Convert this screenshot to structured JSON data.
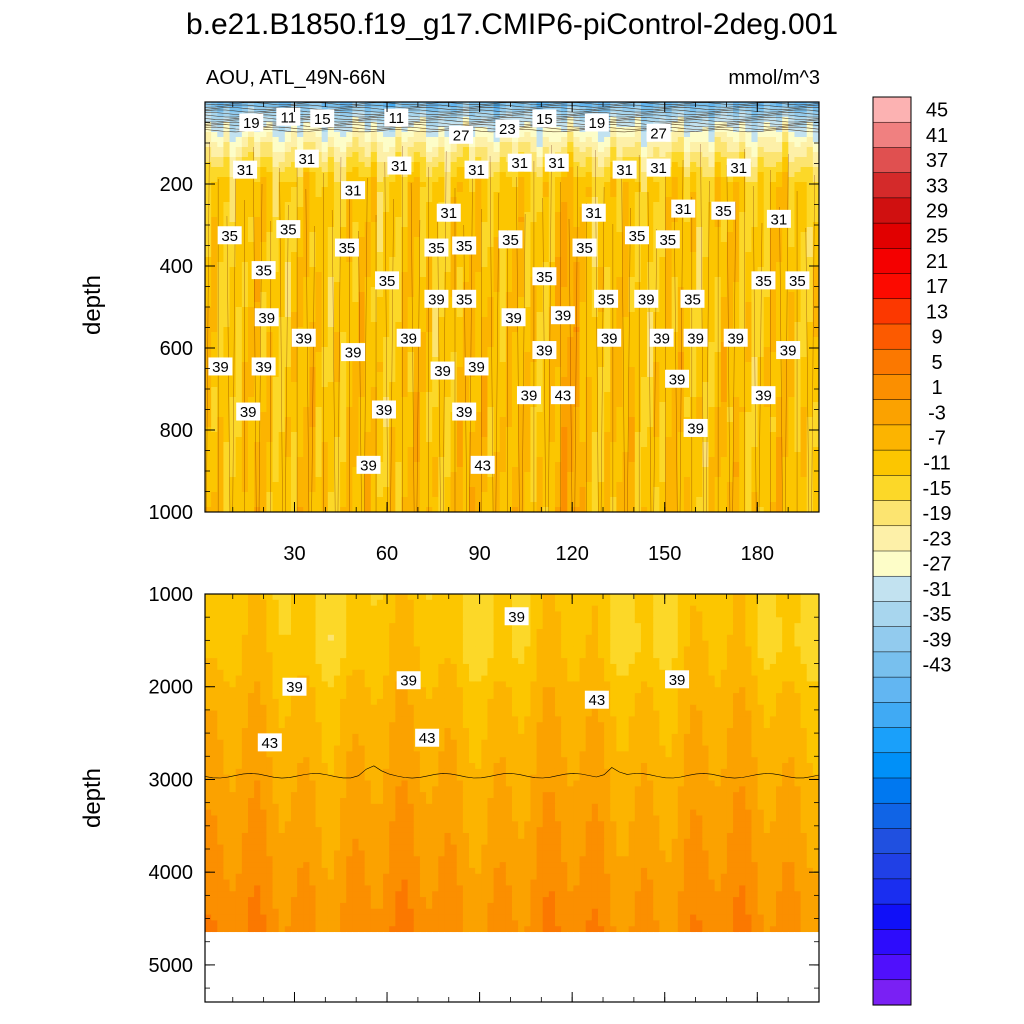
{
  "chart_data": {
    "type": "contour",
    "title": "b.e21.B1850.f19_g17.CMIP6-piControl-2deg.001",
    "left_subtitle": "AOU, ATL_49N-66N",
    "right_subtitle": "mmol/m^3",
    "ylabel": "depth",
    "upper_panel": {
      "ylim": [
        0,
        1000
      ],
      "xlim": [
        1,
        200
      ],
      "y_ticks": [
        "200",
        "400",
        "600",
        "800",
        "1000"
      ],
      "y_tick_values": [
        200,
        400,
        600,
        800,
        1000
      ],
      "x_ticks": [
        "30",
        "60",
        "90",
        "120",
        "150",
        "180"
      ],
      "x_tick_values": [
        30,
        60,
        90,
        120,
        150,
        180
      ],
      "contour_labels": [
        {
          "t": "19",
          "x": 16,
          "y": 50
        },
        {
          "t": "11",
          "x": 28,
          "y": 36
        },
        {
          "t": "15",
          "x": 39,
          "y": 40
        },
        {
          "t": "11",
          "x": 63,
          "y": 38
        },
        {
          "t": "27",
          "x": 84,
          "y": 80
        },
        {
          "t": "23",
          "x": 99,
          "y": 65
        },
        {
          "t": "15",
          "x": 111,
          "y": 40
        },
        {
          "t": "19",
          "x": 128,
          "y": 50
        },
        {
          "t": "27",
          "x": 148,
          "y": 75
        },
        {
          "t": "31",
          "x": 14,
          "y": 165
        },
        {
          "t": "31",
          "x": 34,
          "y": 138
        },
        {
          "t": "31",
          "x": 64,
          "y": 155
        },
        {
          "t": "31",
          "x": 49,
          "y": 215
        },
        {
          "t": "31",
          "x": 89,
          "y": 165
        },
        {
          "t": "31",
          "x": 103,
          "y": 148
        },
        {
          "t": "31",
          "x": 115,
          "y": 148
        },
        {
          "t": "31",
          "x": 137,
          "y": 165
        },
        {
          "t": "31",
          "x": 148,
          "y": 160
        },
        {
          "t": "31",
          "x": 174,
          "y": 160
        },
        {
          "t": "31",
          "x": 80,
          "y": 270
        },
        {
          "t": "31",
          "x": 127,
          "y": 270
        },
        {
          "t": "31",
          "x": 156,
          "y": 260
        },
        {
          "t": "35",
          "x": 169,
          "y": 265
        },
        {
          "t": "31",
          "x": 187,
          "y": 285
        },
        {
          "t": "35",
          "x": 9,
          "y": 325
        },
        {
          "t": "35",
          "x": 28,
          "y": 310
        },
        {
          "t": "35",
          "x": 47,
          "y": 355
        },
        {
          "t": "35",
          "x": 76,
          "y": 355
        },
        {
          "t": "35",
          "x": 85,
          "y": 350
        },
        {
          "t": "35",
          "x": 100,
          "y": 335
        },
        {
          "t": "35",
          "x": 141,
          "y": 325
        },
        {
          "t": "35",
          "x": 151,
          "y": 335
        },
        {
          "t": "35",
          "x": 20,
          "y": 410
        },
        {
          "t": "35",
          "x": 60,
          "y": 435
        },
        {
          "t": "35",
          "x": 111,
          "y": 425
        },
        {
          "t": "35",
          "x": 124,
          "y": 355
        },
        {
          "t": "39",
          "x": 76,
          "y": 480
        },
        {
          "t": "35",
          "x": 85,
          "y": 480
        },
        {
          "t": "35",
          "x": 131,
          "y": 480
        },
        {
          "t": "39",
          "x": 144,
          "y": 480
        },
        {
          "t": "35",
          "x": 159,
          "y": 480
        },
        {
          "t": "35",
          "x": 182,
          "y": 435
        },
        {
          "t": "35",
          "x": 193,
          "y": 435
        },
        {
          "t": "39",
          "x": 21,
          "y": 525
        },
        {
          "t": "39",
          "x": 101,
          "y": 525
        },
        {
          "t": "39",
          "x": 117,
          "y": 520
        },
        {
          "t": "39",
          "x": 33,
          "y": 575
        },
        {
          "t": "39",
          "x": 49,
          "y": 610
        },
        {
          "t": "39",
          "x": 67,
          "y": 575
        },
        {
          "t": "39",
          "x": 111,
          "y": 605
        },
        {
          "t": "39",
          "x": 132,
          "y": 575
        },
        {
          "t": "39",
          "x": 149,
          "y": 575
        },
        {
          "t": "39",
          "x": 160,
          "y": 575
        },
        {
          "t": "39",
          "x": 173,
          "y": 575
        },
        {
          "t": "39",
          "x": 190,
          "y": 605
        },
        {
          "t": "39",
          "x": 6,
          "y": 645
        },
        {
          "t": "39",
          "x": 20,
          "y": 645
        },
        {
          "t": "39",
          "x": 78,
          "y": 655
        },
        {
          "t": "39",
          "x": 89,
          "y": 645
        },
        {
          "t": "39",
          "x": 154,
          "y": 675
        },
        {
          "t": "39",
          "x": 106,
          "y": 715
        },
        {
          "t": "43",
          "x": 117,
          "y": 715
        },
        {
          "t": "39",
          "x": 182,
          "y": 715
        },
        {
          "t": "39",
          "x": 15,
          "y": 755
        },
        {
          "t": "39",
          "x": 59,
          "y": 750
        },
        {
          "t": "39",
          "x": 85,
          "y": 755
        },
        {
          "t": "39",
          "x": 160,
          "y": 795
        },
        {
          "t": "39",
          "x": 54,
          "y": 885
        },
        {
          "t": "43",
          "x": 91,
          "y": 885
        }
      ]
    },
    "lower_panel": {
      "ylim": [
        1000,
        5400
      ],
      "xlim": [
        1,
        200
      ],
      "y_ticks": [
        "1000",
        "2000",
        "3000",
        "4000",
        "5000"
      ],
      "y_tick_values": [
        1000,
        2000,
        3000,
        4000,
        5000
      ],
      "bottom_depth": 4620,
      "contour_labels": [
        {
          "t": "39",
          "x": 102,
          "y": 1240
        },
        {
          "t": "39",
          "x": 30,
          "y": 2000
        },
        {
          "t": "39",
          "x": 67,
          "y": 1930
        },
        {
          "t": "43",
          "x": 128,
          "y": 2140
        },
        {
          "t": "39",
          "x": 154,
          "y": 1920
        },
        {
          "t": "43",
          "x": 22,
          "y": 2600
        },
        {
          "t": "43",
          "x": 73,
          "y": 2550
        }
      ]
    },
    "colorbar": {
      "levels": [
        {
          "label": "45",
          "value": 45
        },
        {
          "label": "41",
          "value": 41
        },
        {
          "label": "37",
          "value": 37
        },
        {
          "label": "33",
          "value": 33
        },
        {
          "label": "29",
          "value": 29
        },
        {
          "label": "25",
          "value": 25
        },
        {
          "label": "21",
          "value": 21
        },
        {
          "label": "17",
          "value": 17
        },
        {
          "label": "13",
          "value": 13
        },
        {
          "label": "9",
          "value": 9
        },
        {
          "label": "5",
          "value": 5
        },
        {
          "label": "1",
          "value": 1
        },
        {
          "label": "-3",
          "value": -3
        },
        {
          "label": "-7",
          "value": -7
        },
        {
          "label": "-11",
          "value": -11
        },
        {
          "label": "-15",
          "value": -15
        },
        {
          "label": "-19",
          "value": -19
        },
        {
          "label": "-23",
          "value": -23
        },
        {
          "label": "-27",
          "value": -27
        },
        {
          "label": "-31",
          "value": -31
        },
        {
          "label": "-35",
          "value": -35
        },
        {
          "label": "-39",
          "value": -39
        },
        {
          "label": "-43",
          "value": -43
        }
      ],
      "colors": [
        "#fcb2b2",
        "#f08080",
        "#e05050",
        "#d42a2a",
        "#d01010",
        "#e10000",
        "#f40000",
        "#fc0a00",
        "#fc3800",
        "#fc5a00",
        "#fb7800",
        "#fb8f00",
        "#fba200",
        "#fcb400",
        "#fcc600",
        "#fcd828",
        "#fce470",
        "#fdf0a8",
        "#fdfdc8",
        "#c2e2f0",
        "#a8d6ee",
        "#92cbee",
        "#78c0ee",
        "#62b6f2",
        "#40aaf4",
        "#1aa0fa",
        "#0090f8",
        "#0078f0",
        "#1064e6",
        "#2050e0",
        "#2040e6",
        "#1a2ef0",
        "#1010f8",
        "#2d0cfc",
        "#5010fc",
        "#7a20f4"
      ]
    }
  }
}
